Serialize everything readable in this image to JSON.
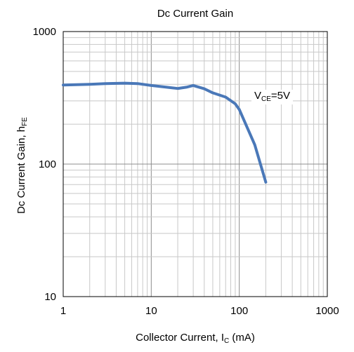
{
  "chart_data": {
    "type": "line",
    "title": "Dc Current Gain",
    "xlabel": {
      "main": "Collector Current, I",
      "sub": "C",
      "suffix": " (mA)"
    },
    "ylabel": {
      "main": "Dc Current Gain, h",
      "sub": "FE",
      "suffix": ""
    },
    "x_scale": "log",
    "y_scale": "log",
    "xlim": [
      1,
      1000
    ],
    "ylim": [
      10,
      1000
    ],
    "x_ticks": [
      "1",
      "10",
      "100",
      "1000"
    ],
    "y_ticks": [
      "10",
      "100",
      "1000"
    ],
    "grid": true,
    "annotation": {
      "main": "V",
      "sub": "CE",
      "suffix": "=5V"
    },
    "series": [
      {
        "color": "#4a78b8",
        "x": [
          1,
          2,
          3,
          5,
          7,
          10,
          15,
          20,
          25,
          30,
          40,
          50,
          70,
          90,
          100,
          150,
          200
        ],
        "y": [
          395,
          400,
          405,
          408,
          405,
          392,
          380,
          372,
          380,
          392,
          370,
          345,
          320,
          285,
          258,
          140,
          73
        ]
      }
    ]
  }
}
